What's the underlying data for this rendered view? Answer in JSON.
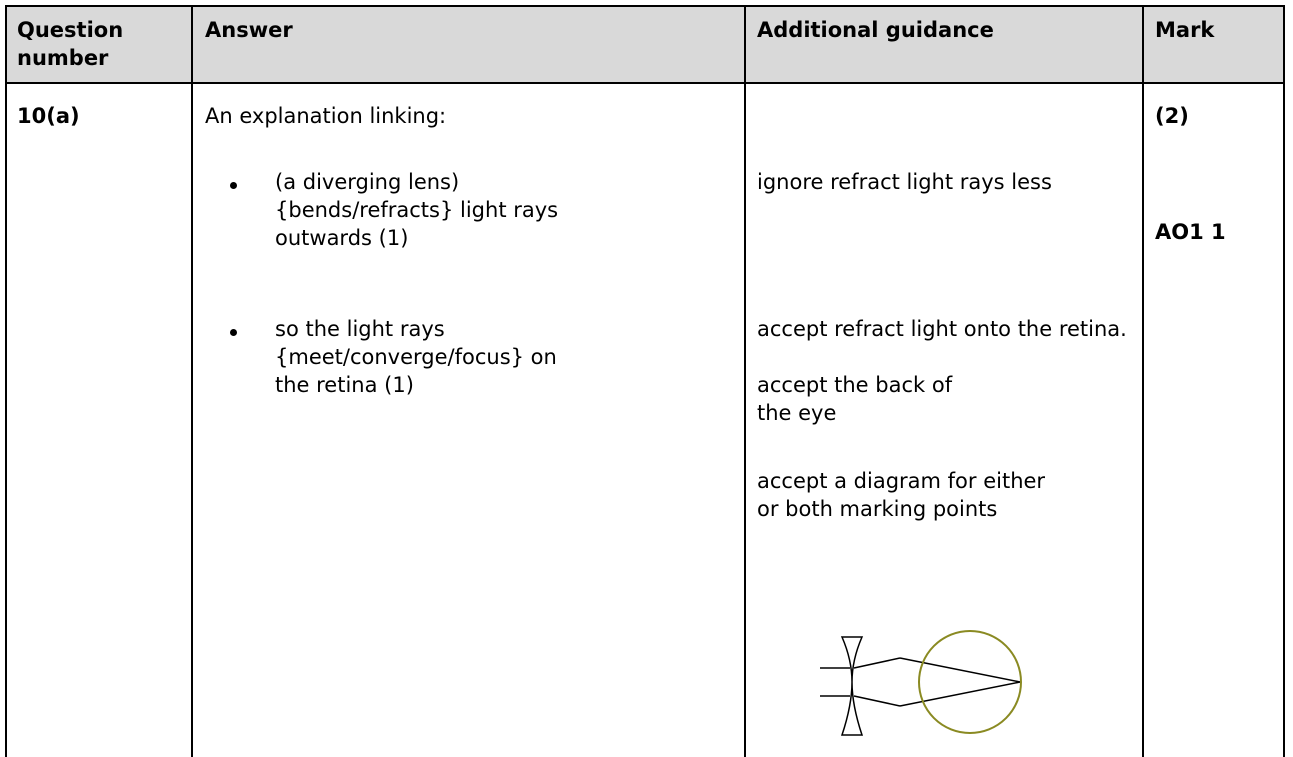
{
  "table": {
    "header": [
      "Question number",
      "Answer",
      "Additional guidance",
      "Mark"
    ],
    "rows": [
      {
        "question": "10(a)",
        "answer": {
          "intro": "An explanation linking:",
          "bullets": [
            "(a diverging lens) {bends/refracts} light rays outwards (1)",
            "so the light rays {meet/converge/focus} on the retina (1)"
          ]
        },
        "guidance": [
          "ignore refract light rays less",
          "accept refract light onto the retina.",
          "accept the back of the eye",
          "accept a diagram for either or both marking points"
        ],
        "mark": [
          "(2)",
          "AO1 1"
        ]
      }
    ]
  }
}
